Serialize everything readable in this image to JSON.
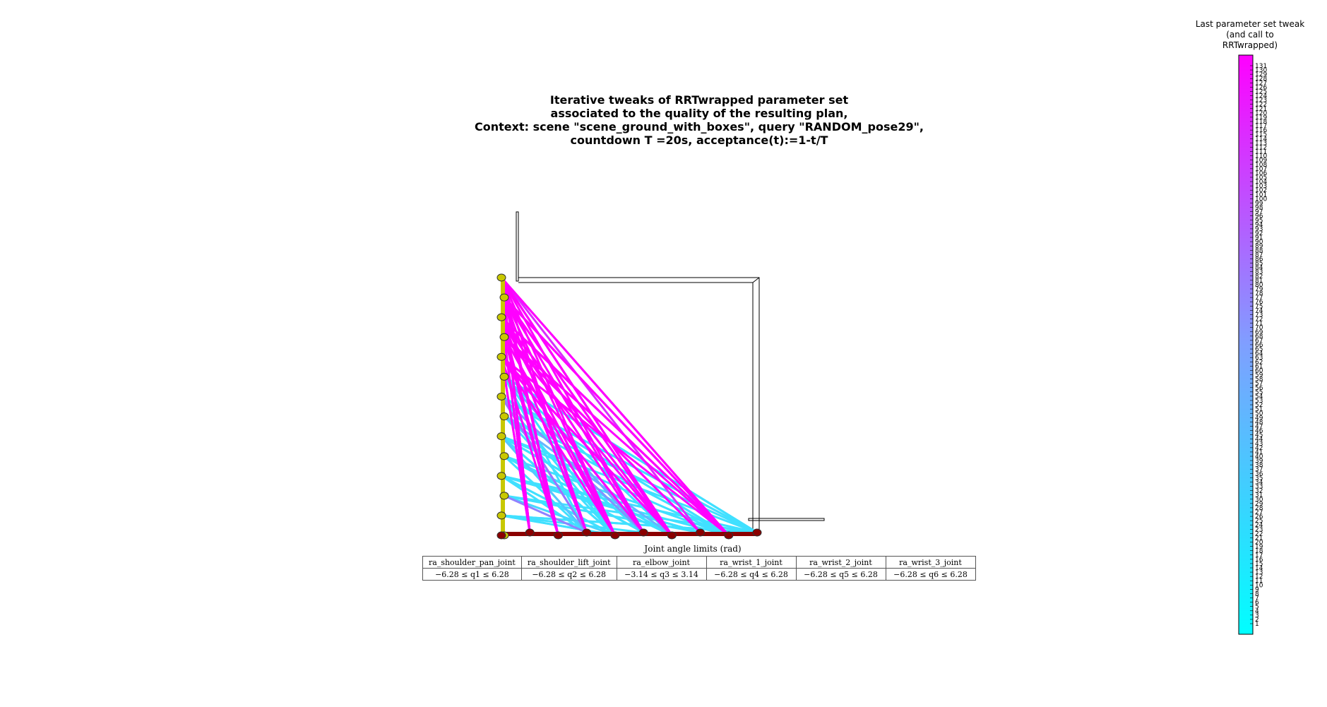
{
  "title_lines": [
    "Iterative tweaks of RRTwrapped parameter set",
    "associated to the quality of the resulting plan,",
    "Context: scene \"scene_ground_with_boxes\", query \"RANDOM_pose29\",",
    "countdown T =20s, acceptance(t):=1-t/T"
  ],
  "colorbar": {
    "title_lines": [
      "Last parameter set tweak",
      "(and call to",
      "RRTwrapped)"
    ],
    "min": 1,
    "max": 131,
    "color_low": "#00ffff",
    "color_high": "#ff00ff"
  },
  "table": {
    "caption": "Joint angle limits (rad)",
    "headers": [
      "ra_shoulder_pan_joint",
      "ra_shoulder_lift_joint",
      "ra_elbow_joint",
      "ra_wrist_1_joint",
      "ra_wrist_2_joint",
      "ra_wrist_3_joint"
    ],
    "limits": [
      "−6.28 ≤ q1 ≤ 6.28",
      "−6.28 ≤ q2 ≤ 6.28",
      "−3.14 ≤ q3 ≤ 3.14",
      "−6.28 ≤ q4 ≤ 6.28",
      "−6.28 ≤ q5 ≤ 6.28",
      "−6.28 ≤ q6 ≤ 6.28"
    ]
  },
  "chart_data": {
    "type": "line",
    "description_colors": {
      "vertical_nodes": "#c8c800",
      "horizontal_nodes": "#8b0000",
      "early_tweaks": "#40e0ff",
      "late_tweaks": "#ff00ff"
    },
    "node_count_vertical": 14,
    "node_count_horizontal": 10,
    "tweak_count": 131
  }
}
